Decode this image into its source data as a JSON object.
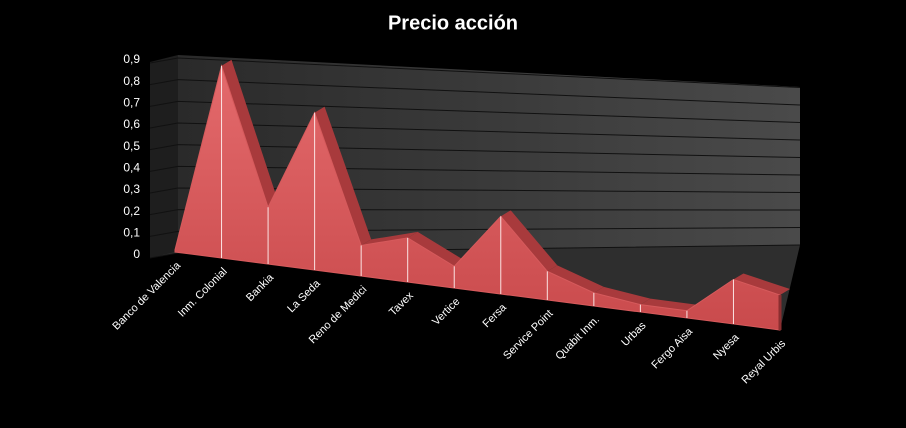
{
  "chart_data": {
    "type": "area3d",
    "title": "Precio acción",
    "categories": [
      "Banco de Valencia",
      "Inm. Colonial",
      "Bankia",
      "La Seda",
      "Reno de Medici",
      "Tavex",
      "Vertice",
      "Fersa",
      "Service Point",
      "Quabit Inm.",
      "Urbas",
      "Fergo Aisa",
      "Nyesa",
      "Reyal Urbis"
    ],
    "values": [
      0.01,
      0.9,
      0.27,
      0.76,
      0.15,
      0.22,
      0.11,
      0.4,
      0.15,
      0.07,
      0.04,
      0.04,
      0.25,
      0.2
    ],
    "color": "#d65a5c",
    "ylim": [
      0,
      0.9
    ],
    "yticks": [
      0,
      {
        "value": 0.1,
        "label": "0,1"
      },
      {
        "value": 0.2,
        "label": "0,2"
      },
      {
        "value": 0.3,
        "label": "0,3"
      },
      {
        "value": 0.4,
        "label": "0,4"
      },
      {
        "value": 0.5,
        "label": "0,5"
      },
      {
        "value": 0.6,
        "label": "0,6"
      },
      {
        "value": 0.7,
        "label": "0,7"
      },
      {
        "value": 0.8,
        "label": "0,8"
      },
      {
        "value": 0.9,
        "label": "0,9"
      }
    ],
    "grid": true
  }
}
